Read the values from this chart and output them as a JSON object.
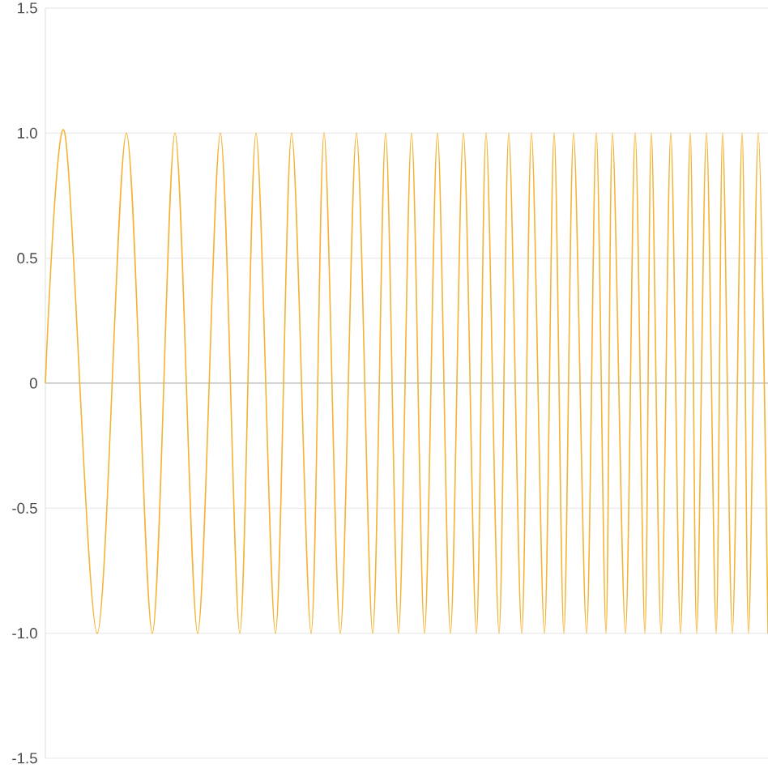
{
  "chart_data": {
    "type": "line",
    "tick_labels": "y",
    "grid": "y",
    "marker": "none",
    "line_style": "solid",
    "color": "#f5b335",
    "ylim": [
      -1.5,
      1.5
    ],
    "yticks": [
      {
        "value": -1.5,
        "label": "-1.5"
      },
      {
        "value": -1,
        "label": "-1.0"
      },
      {
        "value": -0.5,
        "label": "-0.5"
      },
      {
        "value": 0,
        "label": "0"
      },
      {
        "value": 0.5,
        "label": "0.5"
      },
      {
        "value": 1,
        "label": "1.0"
      },
      {
        "value": 1.5,
        "label": "1.5"
      }
    ],
    "categories": [
      null,
      null,
      null,
      null,
      null,
      null,
      null,
      null,
      null,
      null,
      null,
      null,
      null,
      null,
      null,
      null,
      null,
      null,
      null,
      null,
      null,
      null,
      null,
      null,
      null,
      null,
      null,
      null,
      null,
      null,
      null,
      null,
      null,
      null,
      null,
      null,
      null,
      null,
      null,
      null,
      null,
      null,
      null,
      null,
      null,
      null,
      null,
      null,
      null,
      null,
      null,
      null,
      null,
      null,
      null,
      null,
      null,
      null,
      null,
      null,
      null,
      null,
      null,
      null,
      null,
      null,
      null,
      null,
      null,
      null,
      null,
      null,
      null,
      null,
      null,
      null,
      null,
      null,
      null,
      null,
      null,
      null,
      null,
      null,
      null,
      null,
      null,
      null,
      null,
      null,
      null,
      null,
      null,
      null,
      null,
      null,
      null,
      null,
      null,
      null,
      null,
      null,
      null,
      null,
      null,
      null,
      null,
      null,
      null,
      null,
      null,
      null,
      null,
      null,
      null,
      null,
      null,
      null,
      null,
      null,
      null,
      null,
      null,
      null,
      null,
      null,
      null,
      null,
      null,
      null,
      null,
      null,
      null,
      null,
      null,
      null,
      null,
      null,
      null,
      null,
      null,
      null,
      null,
      null,
      null,
      null,
      null,
      null,
      null,
      null,
      null,
      null,
      null,
      null,
      null,
      null,
      null,
      null,
      null,
      null,
      null,
      null,
      null,
      null,
      null,
      null,
      null,
      null,
      null,
      null,
      null,
      null,
      null,
      null,
      null,
      null,
      null,
      null,
      null,
      null,
      null,
      null,
      null,
      null,
      null,
      null,
      null,
      null,
      null,
      null,
      null,
      null,
      null,
      null,
      null,
      null,
      null,
      null,
      null,
      null,
      null,
      null,
      null,
      null,
      null,
      null,
      null,
      null,
      null,
      null,
      null,
      null,
      null,
      null,
      null,
      null,
      null,
      null,
      null,
      null,
      null,
      null,
      null,
      null
    ],
    "values": [
      0,
      null,
      null,
      null,
      null,
      null,
      1,
      null,
      null,
      null,
      null,
      null,
      null,
      null,
      null,
      null,
      -1,
      null,
      null,
      null,
      null,
      null,
      null,
      null,
      null,
      1,
      null,
      null,
      null,
      null,
      null,
      null,
      null,
      -1,
      null,
      null,
      null,
      null,
      null,
      null,
      1,
      null,
      null,
      null,
      null,
      null,
      null,
      -1,
      null,
      null,
      null,
      null,
      null,
      null,
      1,
      null,
      null,
      null,
      null,
      null,
      -1,
      null,
      null,
      null,
      null,
      1,
      null,
      null,
      null,
      null,
      null,
      -1,
      null,
      null,
      null,
      null,
      1,
      null,
      null,
      null,
      null,
      null,
      -1,
      null,
      null,
      null,
      1,
      null,
      null,
      null,
      null,
      -1,
      null,
      null,
      null,
      null,
      1,
      null,
      null,
      null,
      null,
      -1,
      null,
      null,
      null,
      1,
      null,
      null,
      null,
      -1,
      null,
      null,
      null,
      1,
      null,
      null,
      null,
      -1,
      null,
      null,
      null,
      1,
      null,
      null,
      null,
      -1,
      null,
      null,
      null,
      1,
      null,
      null,
      null,
      -1,
      null,
      null,
      1,
      null,
      null,
      null,
      -1,
      null,
      null,
      1,
      null,
      null,
      null,
      -1,
      null,
      null,
      1,
      null,
      null,
      null,
      -1,
      null,
      null,
      1,
      null,
      null,
      -1,
      null,
      null,
      1,
      null,
      null,
      null,
      -1,
      null,
      null,
      1,
      null,
      null,
      -1,
      null,
      1,
      null,
      null,
      null,
      -1,
      null,
      null,
      1,
      null,
      null,
      -1,
      null,
      1,
      null,
      null,
      -1,
      null,
      null,
      1,
      null,
      null,
      -1,
      null,
      null,
      1,
      null,
      -1,
      null,
      null,
      1,
      null,
      null,
      -1,
      null,
      1,
      null,
      null,
      -1,
      null,
      null,
      1,
      null,
      -1,
      null,
      null,
      1,
      null,
      null,
      -1
    ]
  }
}
